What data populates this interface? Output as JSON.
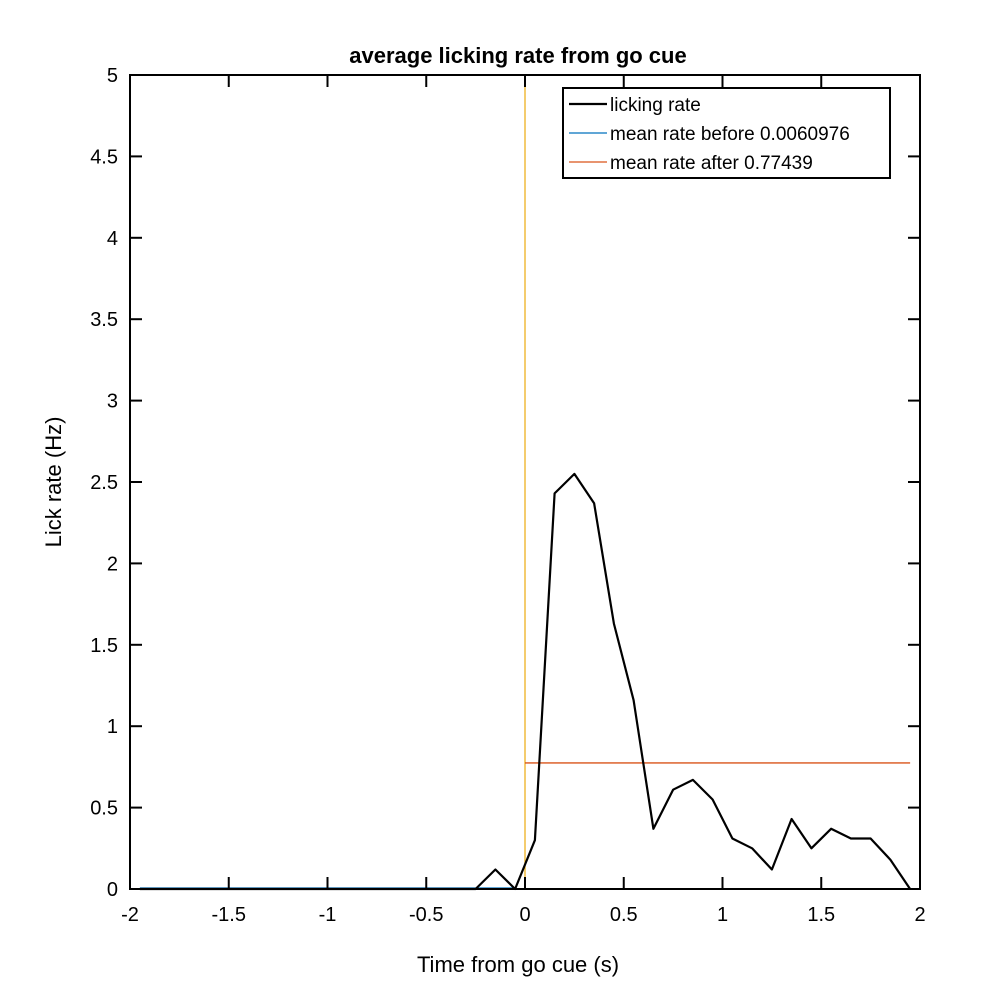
{
  "chart_data": {
    "type": "line",
    "title": "average licking rate from go cue",
    "xlabel": "Time from go cue (s)",
    "ylabel": "Lick rate (Hz)",
    "xlim": [
      -2,
      2
    ],
    "ylim": [
      0,
      5
    ],
    "xticks": [
      -2,
      -1.5,
      -1,
      -0.5,
      0,
      0.5,
      1,
      1.5,
      2
    ],
    "yticks": [
      0,
      0.5,
      1,
      1.5,
      2,
      2.5,
      3,
      3.5,
      4,
      4.5,
      5
    ],
    "xtick_labels": [
      "-2",
      "-1.5",
      "-1",
      "-0.5",
      "0",
      "0.5",
      "1",
      "1.5",
      "2"
    ],
    "ytick_labels": [
      "0",
      "0.5",
      "1",
      "1.5",
      "2",
      "2.5",
      "3",
      "3.5",
      "4",
      "4.5",
      "5"
    ],
    "legend_position": "top-right",
    "series": [
      {
        "name": "licking rate",
        "color": "#000000",
        "x": [
          -1.95,
          -1.85,
          -1.75,
          -1.65,
          -1.55,
          -1.45,
          -1.35,
          -1.25,
          -1.15,
          -1.05,
          -0.95,
          -0.85,
          -0.75,
          -0.65,
          -0.55,
          -0.45,
          -0.35,
          -0.25,
          -0.15,
          -0.05,
          0.05,
          0.15,
          0.25,
          0.35,
          0.45,
          0.55,
          0.65,
          0.75,
          0.85,
          0.95,
          1.05,
          1.15,
          1.25,
          1.35,
          1.45,
          1.55,
          1.65,
          1.75,
          1.85,
          1.95
        ],
        "y": [
          0,
          0,
          0,
          0,
          0,
          0,
          0,
          0,
          0,
          0,
          0,
          0,
          0,
          0,
          0,
          0,
          0,
          0,
          0.12,
          0,
          0.3,
          2.43,
          2.55,
          2.37,
          1.63,
          1.16,
          0.37,
          0.61,
          0.67,
          0.55,
          0.31,
          0.25,
          0.12,
          0.43,
          0.25,
          0.37,
          0.31,
          0.31,
          0.18,
          0
        ]
      },
      {
        "name": "mean rate before 0.0060976",
        "color": "#0072BD",
        "x": [
          -1.95,
          -0.05
        ],
        "y": [
          0.0060976,
          0.0060976
        ]
      },
      {
        "name": "mean rate after 0.77439",
        "color": "#D95319",
        "x": [
          0,
          1.95
        ],
        "y": [
          0.77439,
          0.77439
        ]
      }
    ],
    "vertical_line": {
      "x": 0,
      "color": "#EDB120"
    }
  }
}
